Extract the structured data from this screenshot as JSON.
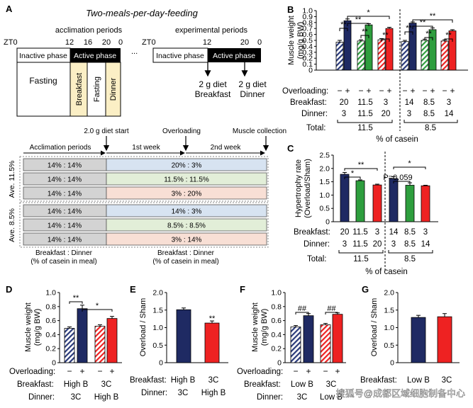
{
  "colors": {
    "navy": "#1F2A63",
    "green": "#2E9E3E",
    "red": "#EE2222",
    "hatch": "#2A3A7A",
    "cream": "#FBEFC5",
    "black": "#000000",
    "grey": "#D3D3D3",
    "blue": "#D7E3F1",
    "lgreen": "#E2EED8",
    "pink": "#F8DFD5"
  },
  "panel_a": {
    "letter": "A",
    "title": "Two-meals-per-day-feeding",
    "zt0": "ZT0",
    "accl_label": "acclimation periods",
    "exp_label": "experimental periods",
    "t12": "12",
    "t16": "16",
    "t20": "20",
    "t0": "0",
    "ellipsis": "...",
    "inactive": "Inactive phase",
    "active": "Active phase",
    "fasting": "Fasting",
    "breakfast": "Breakfast",
    "fasting2": "Fasting",
    "dinner": "Dinner",
    "diet1": "2 g diet",
    "diet1b": "Breakfast",
    "diet2": "2 g diet",
    "diet2b": "Dinner"
  },
  "schedule": {
    "start": "2.0 g diet start",
    "overloading": "Overloading",
    "collection": "Muscle collection",
    "acclimation": "Acclimation periods",
    "week1": "1st week",
    "week2": "2nd week",
    "ave115": "Ave. 11.5%",
    "ave85": "Ave. 8.5%",
    "rows": [
      {
        "left": "14% : 14%",
        "right": "20% : 3%",
        "color": "#D7E3F1"
      },
      {
        "left": "14% : 14%",
        "right": "11.5% : 11.5%",
        "color": "#E2EED8"
      },
      {
        "left": "14% : 14%",
        "right": "3% : 20%",
        "color": "#F8DFD5"
      },
      {
        "left": "14% : 14%",
        "right": "14% : 3%",
        "color": "#D7E3F1"
      },
      {
        "left": "14% : 14%",
        "right": "8.5% : 8.5%",
        "color": "#E2EED8"
      },
      {
        "left": "14% : 14%",
        "right": "3% : 14%",
        "color": "#F8DFD5"
      }
    ],
    "foot_l1": "Breakfast : Dinner",
    "foot_l2": "(% of casein in meal)",
    "foot_r1": "Breakfast : Dinner",
    "foot_r2": "(% of casein in meal)"
  },
  "chart_data": [
    {
      "id": "B",
      "type": "bar",
      "ylabel": "Muscle weight (mg/g BW)",
      "ylim": [
        0,
        1.0
      ],
      "yticks": [
        "0",
        "0.1",
        "0.2",
        "0.3",
        "0.4",
        "0.5",
        "0.6",
        "0.7",
        "0.8",
        "0.9",
        "1.0"
      ],
      "overloading_label": "Overloading:",
      "breakfast_label": "Breakfast:",
      "dinner_label": "Dinner:",
      "total_label": "Total:",
      "overloading_marks": [
        "−",
        "+",
        "−",
        "+",
        "−",
        "+",
        "−",
        "+",
        "−",
        "+",
        "−",
        "+"
      ],
      "breakfast": [
        "20",
        "11.5",
        "3",
        "14",
        "8.5",
        "3"
      ],
      "dinner": [
        "3",
        "11.5",
        "20",
        "3",
        "8.5",
        "14"
      ],
      "totals": [
        "11.5",
        "8.5"
      ],
      "xlabel": "% of casein",
      "values": [
        0.47,
        0.83,
        0.49,
        0.76,
        0.51,
        0.7,
        0.48,
        0.79,
        0.5,
        0.68,
        0.49,
        0.66
      ],
      "errors": [
        0.03,
        0.03,
        0.02,
        0.02,
        0.02,
        0.02,
        0.02,
        0.02,
        0.02,
        0.03,
        0.02,
        0.02
      ],
      "sig": [
        "**",
        "**",
        "**",
        "*",
        "**",
        "**",
        "**",
        "*",
        "**"
      ]
    },
    {
      "id": "C",
      "type": "bar",
      "ylabel": "Hypertrophy rate (Overload/Sham)",
      "ylim": [
        0,
        2.5
      ],
      "yticks": [
        "0",
        "0.5",
        "1.0",
        "1.5",
        "2.0",
        "2.5"
      ],
      "breakfast_label": "Breakfast:",
      "dinner_label": "Dinner:",
      "total_label": "Total:",
      "breakfast": [
        "20",
        "11.5",
        "3",
        "14",
        "8.5",
        "3"
      ],
      "dinner": [
        "3",
        "11.5",
        "20",
        "3",
        "8.5",
        "14"
      ],
      "totals": [
        "11.5",
        "8.5"
      ],
      "xlabel": "% of casein",
      "values": [
        1.78,
        1.54,
        1.38,
        1.62,
        1.37,
        1.35
      ],
      "errors": [
        0.07,
        0.03,
        0.03,
        0.07,
        0.09,
        0.02
      ],
      "sig": [
        "*",
        "**",
        "P=0.059",
        "*"
      ]
    },
    {
      "id": "D",
      "type": "bar",
      "ylabel": "Muscle weight (mg/g BW)",
      "ylim": [
        0,
        1.0
      ],
      "yticks": [
        "0",
        "0.2",
        "0.4",
        "0.6",
        "0.8",
        "1.0"
      ],
      "overloading_label": "Overloading:",
      "breakfast_label": "Breakfast:",
      "dinner_label": "Dinner:",
      "overloading_marks": [
        "−",
        "+",
        "−",
        "+"
      ],
      "breakfast": [
        "High B",
        "3C"
      ],
      "dinner": [
        "3C",
        "High B"
      ],
      "values": [
        0.49,
        0.77,
        0.52,
        0.63
      ],
      "errors": [
        0.02,
        0.05,
        0.02,
        0.03
      ],
      "sig": [
        "**",
        "*"
      ]
    },
    {
      "id": "E",
      "type": "bar",
      "ylabel": "Overload / Sham",
      "ylim": [
        0,
        2.0
      ],
      "yticks": [
        "0",
        "0.5",
        "1.0",
        "1.5",
        "2.0"
      ],
      "breakfast_label": "Breakfast:",
      "dinner_label": "Dinner:",
      "breakfast": [
        "High B",
        "3C"
      ],
      "dinner": [
        "3C",
        "High B"
      ],
      "values": [
        1.51,
        1.13
      ],
      "errors": [
        0.05,
        0.06
      ],
      "sig": [
        "**"
      ]
    },
    {
      "id": "F",
      "type": "bar",
      "ylabel": "Muscle weight (mg/g BW)",
      "ylim": [
        0,
        1.0
      ],
      "yticks": [
        "0",
        "0.2",
        "0.4",
        "0.6",
        "0.8",
        "1.0"
      ],
      "overloading_label": "Overloading:",
      "breakfast_label": "Breakfast:",
      "dinner_label": "Dinner:",
      "overloading_marks": [
        "−",
        "+",
        "−",
        "+"
      ],
      "breakfast": [
        "Low B",
        "3C"
      ],
      "dinner": [
        "3C",
        "Low B"
      ],
      "values": [
        0.51,
        0.67,
        0.54,
        0.69
      ],
      "errors": [
        0.02,
        0.03,
        0.02,
        0.02
      ],
      "sig": [
        "##",
        "##"
      ]
    },
    {
      "id": "G",
      "type": "bar",
      "ylabel": "Overload / Sham",
      "ylim": [
        0,
        2.0
      ],
      "yticks": [
        "0",
        "0.5",
        "1.0",
        "1.5",
        "2.0"
      ],
      "breakfast_label": "Breakfast:",
      "breakfast": [
        "Low B",
        "3C"
      ],
      "values": [
        1.29,
        1.31
      ],
      "errors": [
        0.06,
        0.09
      ],
      "sig": []
    }
  ],
  "watermark": "搜狐号@成都区域细胞制备中心"
}
